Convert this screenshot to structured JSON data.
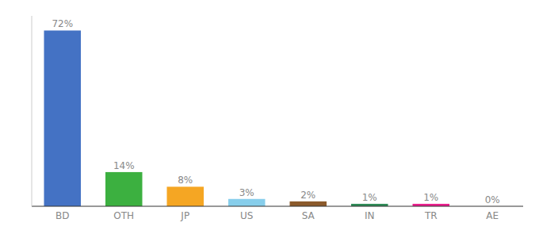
{
  "chart_data": {
    "type": "bar",
    "categories": [
      "BD",
      "OTH",
      "JP",
      "US",
      "SA",
      "IN",
      "TR",
      "AE"
    ],
    "values": [
      72,
      14,
      8,
      3,
      2,
      1,
      1,
      0
    ],
    "value_labels": [
      "72%",
      "14%",
      "8%",
      "3%",
      "2%",
      "1%",
      "1%",
      "0%"
    ],
    "colors": [
      "#4472C4",
      "#3CB040",
      "#F5A623",
      "#87CEEB",
      "#8B5A2B",
      "#2E8B57",
      "#E91E8C",
      "#CC0000"
    ],
    "ylim": [
      0,
      78
    ],
    "yticks": [],
    "data_labels": true,
    "tick_labels": "x",
    "grid": false
  }
}
